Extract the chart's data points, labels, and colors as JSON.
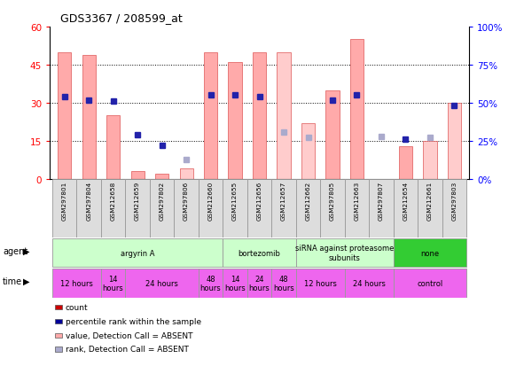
{
  "title": "GDS3367 / 208599_at",
  "samples": [
    "GSM297801",
    "GSM297804",
    "GSM212658",
    "GSM212659",
    "GSM297802",
    "GSM297806",
    "GSM212660",
    "GSM212655",
    "GSM212656",
    "GSM212657",
    "GSM212662",
    "GSM297805",
    "GSM212663",
    "GSM297807",
    "GSM212654",
    "GSM212661",
    "GSM297803"
  ],
  "bar_values": [
    50,
    49,
    25,
    3,
    2,
    null,
    50,
    46,
    50,
    null,
    null,
    35,
    55,
    null,
    13,
    null,
    null
  ],
  "bar_absent_values": [
    null,
    null,
    null,
    null,
    null,
    4,
    null,
    null,
    null,
    50,
    22,
    null,
    null,
    null,
    null,
    15,
    30
  ],
  "rank_values": [
    54,
    52,
    51,
    29,
    22,
    null,
    55,
    55,
    54,
    null,
    null,
    52,
    55,
    null,
    26,
    null,
    48
  ],
  "rank_absent_values": [
    null,
    null,
    null,
    null,
    null,
    13,
    null,
    null,
    null,
    31,
    27,
    null,
    null,
    28,
    null,
    27,
    null
  ],
  "ylim_left": [
    0,
    60
  ],
  "ylim_right": [
    0,
    100
  ],
  "yticks_left": [
    0,
    15,
    30,
    45,
    60
  ],
  "yticks_right": [
    0,
    25,
    50,
    75,
    100
  ],
  "ytick_labels_left": [
    "0",
    "15",
    "30",
    "45",
    "60"
  ],
  "ytick_labels_right": [
    "0%",
    "25%",
    "50%",
    "75%",
    "100%"
  ],
  "bar_color_present": "#ffaaaa",
  "bar_color_absent": "#ffcccc",
  "rank_color_present": "#2222aa",
  "rank_color_absent": "#aaaacc",
  "agent_groups": [
    {
      "label": "argyrin A",
      "start": 0,
      "end": 7,
      "color": "#ccffcc"
    },
    {
      "label": "bortezomib",
      "start": 7,
      "end": 10,
      "color": "#ccffcc"
    },
    {
      "label": "siRNA against proteasome\nsubunits",
      "start": 10,
      "end": 14,
      "color": "#ccffcc"
    },
    {
      "label": "none",
      "start": 14,
      "end": 17,
      "color": "#33cc33"
    }
  ],
  "time_groups": [
    {
      "label": "12 hours",
      "start": 0,
      "end": 2,
      "color": "#ee66ee"
    },
    {
      "label": "14\nhours",
      "start": 2,
      "end": 3,
      "color": "#ee66ee"
    },
    {
      "label": "24 hours",
      "start": 3,
      "end": 6,
      "color": "#ee66ee"
    },
    {
      "label": "48\nhours",
      "start": 6,
      "end": 7,
      "color": "#ee66ee"
    },
    {
      "label": "14\nhours",
      "start": 7,
      "end": 8,
      "color": "#ee66ee"
    },
    {
      "label": "24\nhours",
      "start": 8,
      "end": 9,
      "color": "#ee66ee"
    },
    {
      "label": "48\nhours",
      "start": 9,
      "end": 10,
      "color": "#ee66ee"
    },
    {
      "label": "12 hours",
      "start": 10,
      "end": 12,
      "color": "#ee66ee"
    },
    {
      "label": "24 hours",
      "start": 12,
      "end": 14,
      "color": "#ee66ee"
    },
    {
      "label": "control",
      "start": 14,
      "end": 17,
      "color": "#ee66ee"
    }
  ],
  "legend_items": [
    {
      "label": "count",
      "color": "#cc0000"
    },
    {
      "label": "percentile rank within the sample",
      "color": "#000099"
    },
    {
      "label": "value, Detection Call = ABSENT",
      "color": "#ffaaaa"
    },
    {
      "label": "rank, Detection Call = ABSENT",
      "color": "#aaaacc"
    }
  ]
}
